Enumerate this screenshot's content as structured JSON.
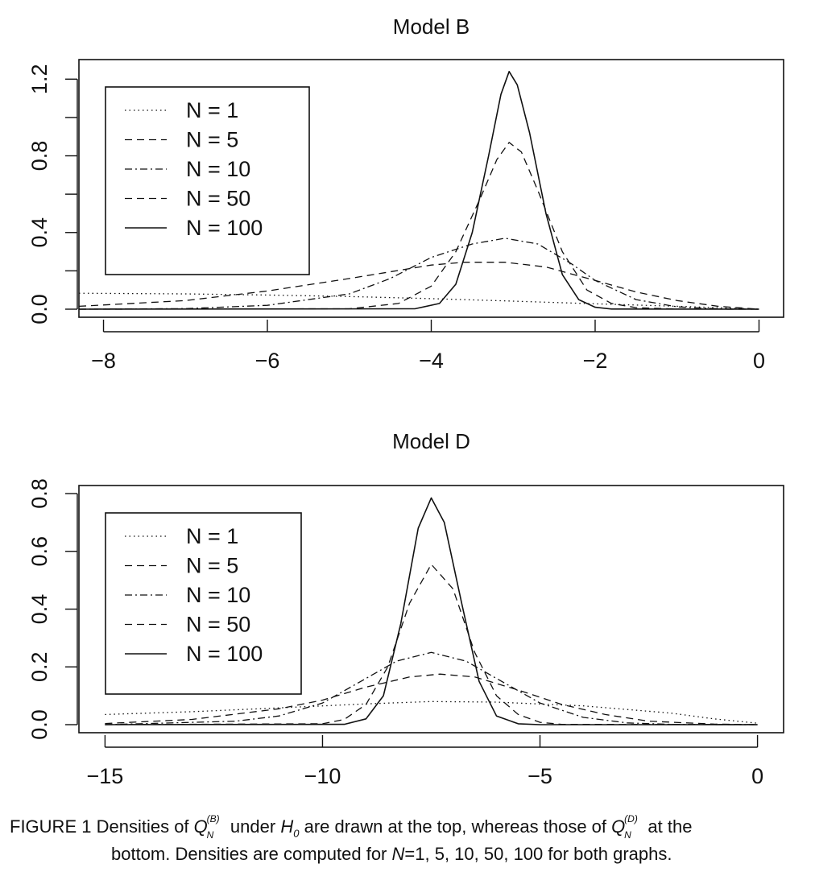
{
  "chart_data": [
    {
      "type": "line",
      "title": "Model B",
      "xlabel": "",
      "ylabel": "",
      "xlim": [
        -8.3,
        0.3
      ],
      "ylim": [
        0,
        1.26
      ],
      "xticks": [
        -8,
        -6,
        -4,
        -2,
        0
      ],
      "xtick_labels": [
        "−8",
        "−6",
        "−4",
        "−2",
        "0"
      ],
      "yticks": [
        0,
        0.2,
        0.4,
        0.6,
        0.8,
        1.0,
        1.2
      ],
      "ytick_labels": [
        "0.0",
        "",
        "0.4",
        "",
        "0.8",
        "",
        "1.2"
      ],
      "grid": false,
      "legend_position": "top-left",
      "series": [
        {
          "name": "N = 1",
          "style": "dotted",
          "x": [
            -8.3,
            -7,
            -6,
            -5,
            -4,
            -3,
            -2,
            -1,
            -0.5,
            0
          ],
          "y": [
            0.083,
            0.08,
            0.074,
            0.066,
            0.055,
            0.042,
            0.028,
            0.015,
            0.008,
            0.0
          ]
        },
        {
          "name": "N = 5",
          "style": "dashed",
          "x": [
            -8.3,
            -7,
            -6,
            -5,
            -4,
            -3.6,
            -3.1,
            -2.6,
            -2,
            -1.5,
            -1,
            -0.5,
            0
          ],
          "y": [
            0.015,
            0.045,
            0.095,
            0.16,
            0.23,
            0.245,
            0.245,
            0.22,
            0.15,
            0.09,
            0.045,
            0.015,
            0.0
          ]
        },
        {
          "name": "N = 10",
          "style": "dashdot",
          "x": [
            -8.3,
            -7,
            -6,
            -5,
            -4.5,
            -4,
            -3.5,
            -3.1,
            -2.7,
            -2.3,
            -2,
            -1.5,
            -1,
            -0.5,
            0
          ],
          "y": [
            0.0,
            0.003,
            0.02,
            0.08,
            0.16,
            0.27,
            0.34,
            0.37,
            0.34,
            0.24,
            0.15,
            0.05,
            0.012,
            0.002,
            0.0
          ]
        },
        {
          "name": "N = 50",
          "style": "dashed",
          "x": [
            -8.3,
            -5,
            -4.4,
            -4,
            -3.7,
            -3.4,
            -3.2,
            -3.05,
            -2.9,
            -2.7,
            -2.4,
            -2.1,
            -1.8,
            -1.5,
            -1,
            0
          ],
          "y": [
            0.0,
            0.002,
            0.03,
            0.12,
            0.3,
            0.58,
            0.78,
            0.87,
            0.82,
            0.62,
            0.3,
            0.1,
            0.03,
            0.008,
            0.001,
            0.0
          ]
        },
        {
          "name": "N = 100",
          "style": "solid",
          "x": [
            -8.3,
            -4.2,
            -3.9,
            -3.7,
            -3.5,
            -3.3,
            -3.15,
            -3.05,
            -2.95,
            -2.8,
            -2.6,
            -2.4,
            -2.2,
            -2.0,
            -1.8,
            0
          ],
          "y": [
            0.0,
            0.002,
            0.03,
            0.13,
            0.4,
            0.8,
            1.12,
            1.24,
            1.17,
            0.92,
            0.5,
            0.18,
            0.05,
            0.01,
            0.001,
            0.0
          ]
        }
      ]
    },
    {
      "type": "line",
      "title": "Model D",
      "xlabel": "",
      "ylabel": "",
      "xlim": [
        -15.6,
        0.6
      ],
      "ylim": [
        0,
        0.8
      ],
      "xticks": [
        -15,
        -10,
        -5,
        0
      ],
      "xtick_labels": [
        "−15",
        "−10",
        "−5",
        "0"
      ],
      "yticks": [
        0,
        0.2,
        0.4,
        0.6,
        0.8
      ],
      "ytick_labels": [
        "0.0",
        "0.2",
        "0.4",
        "0.6",
        "0.8"
      ],
      "grid": false,
      "legend_position": "top-left",
      "series": [
        {
          "name": "N = 1",
          "style": "dotted",
          "x": [
            -15,
            -13,
            -11,
            -9,
            -7.5,
            -6,
            -4,
            -2,
            -1,
            0
          ],
          "y": [
            0.035,
            0.045,
            0.058,
            0.072,
            0.08,
            0.078,
            0.065,
            0.04,
            0.02,
            0.005
          ]
        },
        {
          "name": "N = 5",
          "style": "dashed",
          "x": [
            -15,
            -13,
            -11,
            -10,
            -9,
            -8,
            -7.3,
            -6.5,
            -5.5,
            -4.5,
            -3.5,
            -2.5,
            -1,
            0
          ],
          "y": [
            0.004,
            0.018,
            0.055,
            0.085,
            0.13,
            0.165,
            0.175,
            0.165,
            0.12,
            0.07,
            0.035,
            0.012,
            0.002,
            0.0
          ]
        },
        {
          "name": "N = 10",
          "style": "dashdot",
          "x": [
            -15,
            -12,
            -11,
            -10,
            -9,
            -8.3,
            -7.5,
            -6.7,
            -6,
            -5,
            -4,
            -3,
            -2,
            0
          ],
          "y": [
            0.0,
            0.012,
            0.03,
            0.075,
            0.16,
            0.22,
            0.25,
            0.22,
            0.16,
            0.075,
            0.025,
            0.006,
            0.001,
            0.0
          ]
        },
        {
          "name": "N = 50",
          "style": "dashed",
          "x": [
            -15,
            -10,
            -9.5,
            -9,
            -8.5,
            -8,
            -7.5,
            -7,
            -6.5,
            -6,
            -5.5,
            -5,
            -4.5,
            0
          ],
          "y": [
            0.0,
            0.003,
            0.018,
            0.07,
            0.2,
            0.42,
            0.555,
            0.47,
            0.25,
            0.1,
            0.035,
            0.008,
            0.001,
            0.0
          ]
        },
        {
          "name": "N = 100",
          "style": "solid",
          "x": [
            -15,
            -9.5,
            -9,
            -8.6,
            -8.2,
            -7.8,
            -7.5,
            -7.2,
            -6.8,
            -6.4,
            -6.0,
            -5.5,
            -5.0,
            0
          ],
          "y": [
            0.0,
            0.001,
            0.02,
            0.1,
            0.35,
            0.68,
            0.785,
            0.7,
            0.42,
            0.15,
            0.03,
            0.003,
            0.0,
            0.0
          ]
        }
      ]
    }
  ],
  "caption": {
    "label": "FIGURE 1",
    "t1": "Densities of",
    "q_b_sup": "(B)",
    "q_sub": "N",
    "q_letter": "Q",
    "t2": "under",
    "h": "H",
    "h_sub": "0",
    "t3": "are drawn at the top, whereas those of",
    "q_d_sup": "(D)",
    "t4": "at the",
    "line2a": "bottom. Densities are computed for",
    "n": "N",
    "line2b": "=1, 5, 10, 50, 100 for both graphs."
  }
}
